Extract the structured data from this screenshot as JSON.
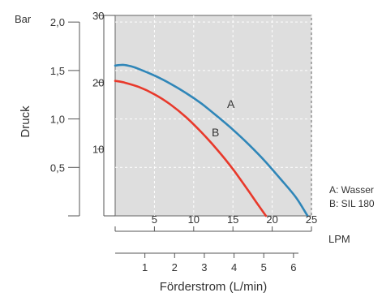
{
  "chart_data": {
    "type": "line",
    "title": "",
    "xlabel": "Förderstrom (L/min)",
    "ylabel": "Druck",
    "x_unit_lpm": "LPM",
    "y_unit_bar": "Bar",
    "x_lpm_ticks": [
      "5",
      "10",
      "15",
      "20",
      "25"
    ],
    "x_lmin_ticks": [
      "1",
      "2",
      "3",
      "4",
      "5",
      "6"
    ],
    "y_bar_ticks": [
      "0,5",
      "1,0",
      "1,5",
      "2,0"
    ],
    "y_psi_ticks": [
      "10",
      "20",
      "30"
    ],
    "xlim_lpm": [
      0,
      25
    ],
    "ylim_psi": [
      0,
      30
    ],
    "grid": true,
    "legend_position": "right",
    "legend": [
      "A: Wasser",
      "B: SIL 180"
    ],
    "series": [
      {
        "name": "A",
        "color": "#2f86b8",
        "x": [
          0,
          1,
          2,
          3,
          5,
          7,
          9,
          11,
          13,
          15,
          17,
          19,
          21,
          23,
          24.5
        ],
        "y": [
          22.5,
          22.6,
          22.4,
          22.0,
          21.0,
          19.8,
          18.4,
          16.8,
          14.9,
          12.9,
          10.7,
          8.3,
          5.6,
          2.8,
          0
        ]
      },
      {
        "name": "B",
        "color": "#e8392b",
        "x": [
          0,
          1,
          3,
          5,
          7,
          9,
          11,
          13,
          15,
          17,
          18,
          19.2
        ],
        "y": [
          20.2,
          20.0,
          19.3,
          18.2,
          16.7,
          14.8,
          12.5,
          9.9,
          7.0,
          3.7,
          2.0,
          0
        ]
      }
    ]
  }
}
